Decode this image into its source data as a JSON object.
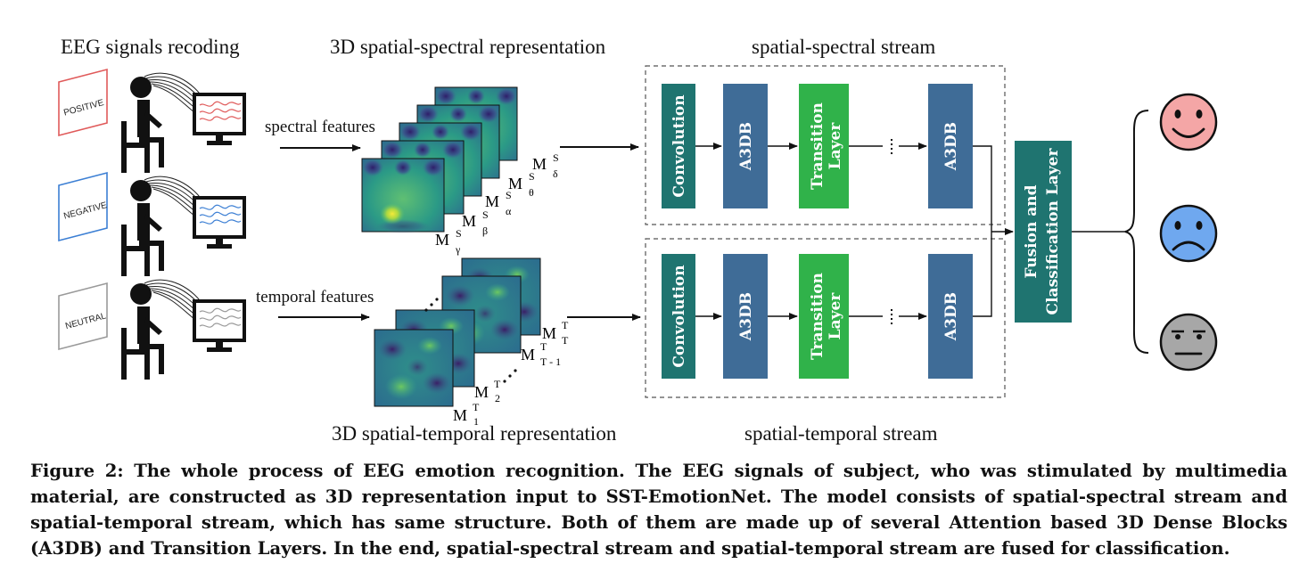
{
  "headers": {
    "recording": "EEG signals recoding",
    "spectral_rep": "3D spatial-spectral representation",
    "spectral_stream": "spatial-spectral stream",
    "temporal_rep": "3D spatial-temporal representation",
    "temporal_stream": "spatial-temporal stream"
  },
  "stimuli": [
    {
      "label": "POSITIVE",
      "color": "#e05a5a"
    },
    {
      "label": "NEGATIVE",
      "color": "#3c7fd4"
    },
    {
      "label": "NEUTRAL",
      "color": "#9a9a9a"
    }
  ],
  "features": {
    "spectral": "spectral features",
    "temporal": "temporal features"
  },
  "spectral_maps": [
    {
      "base": "M",
      "sup": "S",
      "sub": "γ"
    },
    {
      "base": "M",
      "sup": "S",
      "sub": "β"
    },
    {
      "base": "M",
      "sup": "S",
      "sub": "α"
    },
    {
      "base": "M",
      "sup": "S",
      "sub": "θ"
    },
    {
      "base": "M",
      "sup": "S",
      "sub": "δ"
    }
  ],
  "temporal_maps": [
    {
      "base": "M",
      "sup": "T",
      "sub": "1"
    },
    {
      "base": "M",
      "sup": "T",
      "sub": "2"
    },
    {
      "base": "M",
      "sup": "T",
      "sub": "T - 1"
    },
    {
      "base": "M",
      "sup": "T",
      "sub": "T"
    }
  ],
  "blocks": {
    "convolution": "Convolution",
    "a3db": "A3DB",
    "transition_1": "Transition",
    "transition_2": "Layer",
    "fusion_1": "Fusion and",
    "fusion_2": "Classification Layer"
  },
  "colors": {
    "conv": "#1f7470",
    "a3db": "#3f6c97",
    "transition": "#30b24a",
    "fusion": "#1f7470",
    "happy": "#f4a6a6",
    "sad": "#6fa8ef",
    "neutral": "#a7a7a7"
  },
  "emotions": [
    "happy-face",
    "sad-face",
    "neutral-face"
  ],
  "caption": [
    "Figure 2: The whole process of EEG emotion recognition. The EEG signals of subject, who was stimulated by multimedia",
    "material, are constructed as 3D representation input to SST-EmotionNet. The model consists of spatial-spectral stream and",
    "spatial-temporal stream, which has same structure. Both of them are made up of several Attention based 3D Dense Blocks",
    "(A3DB) and Transition Layers. In the end, spatial-spectral stream and spatial-temporal stream are fused for classification."
  ]
}
